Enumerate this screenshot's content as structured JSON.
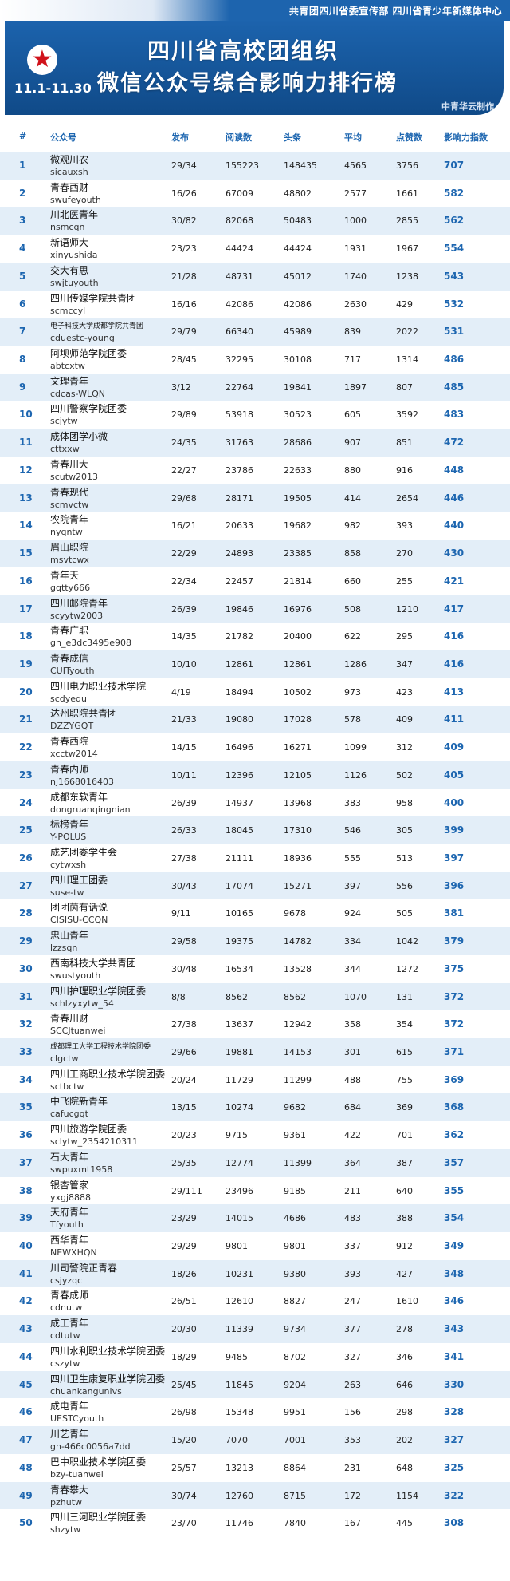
{
  "header": {
    "top_text": "共青团四川省委宣传部  四川省青少年新媒体中心",
    "title_line1": "四川省高校团组织",
    "title_line2": "微信公众号综合影响力排行榜",
    "date_range": "11.1-11.30",
    "maker": "中青华云制作",
    "star_icon": "★",
    "colors": {
      "banner": "#1c63ad",
      "accent": "#1d66b0",
      "row_alt": "#e3eef8",
      "star": "#d0121b"
    }
  },
  "columns": [
    "#",
    "公众号",
    "发布",
    "阅读数",
    "头条",
    "平均",
    "点赞数",
    "影响力指数"
  ],
  "rows": [
    {
      "rank": "1",
      "name": "微观川农",
      "id": "sicauxsh",
      "pub": "29/34",
      "read": "155223",
      "head": "148435",
      "avg": "4565",
      "like": "3756",
      "idx": "707"
    },
    {
      "rank": "2",
      "name": "青春西财",
      "id": "swufeyouth",
      "pub": "16/26",
      "read": "67009",
      "head": "48802",
      "avg": "2577",
      "like": "1661",
      "idx": "582"
    },
    {
      "rank": "3",
      "name": "川北医青年",
      "id": "nsmcqn",
      "pub": "30/82",
      "read": "82068",
      "head": "50483",
      "avg": "1000",
      "like": "2855",
      "idx": "562"
    },
    {
      "rank": "4",
      "name": "新语师大",
      "id": "xinyushida",
      "pub": "23/23",
      "read": "44424",
      "head": "44424",
      "avg": "1931",
      "like": "1967",
      "idx": "554"
    },
    {
      "rank": "5",
      "name": "交大有思",
      "id": "swjtuyouth",
      "pub": "21/28",
      "read": "48731",
      "head": "45012",
      "avg": "1740",
      "like": "1238",
      "idx": "543"
    },
    {
      "rank": "6",
      "name": "四川传媒学院共青团",
      "id": "scmccyl",
      "pub": "16/16",
      "read": "42086",
      "head": "42086",
      "avg": "2630",
      "like": "429",
      "idx": "532"
    },
    {
      "rank": "7",
      "name": "电子科技大学成都学院共青团",
      "id": "cduestc-young",
      "pub": "29/79",
      "read": "66340",
      "head": "45989",
      "avg": "839",
      "like": "2022",
      "idx": "531",
      "small": true
    },
    {
      "rank": "8",
      "name": "阿坝师范学院团委",
      "id": "abtcxtw",
      "pub": "28/45",
      "read": "32295",
      "head": "30108",
      "avg": "717",
      "like": "1314",
      "idx": "486"
    },
    {
      "rank": "9",
      "name": "文理青年",
      "id": "cdcas-WLQN",
      "pub": "3/12",
      "read": "22764",
      "head": "19841",
      "avg": "1897",
      "like": "807",
      "idx": "485"
    },
    {
      "rank": "10",
      "name": "四川警察学院团委",
      "id": "scjytw",
      "pub": "29/89",
      "read": "53918",
      "head": "30523",
      "avg": "605",
      "like": "3592",
      "idx": "483"
    },
    {
      "rank": "11",
      "name": "成体团学小微",
      "id": "cttxxw",
      "pub": "24/35",
      "read": "31763",
      "head": "28686",
      "avg": "907",
      "like": "851",
      "idx": "472"
    },
    {
      "rank": "12",
      "name": "青春川大",
      "id": "scutw2013",
      "pub": "22/27",
      "read": "23786",
      "head": "22633",
      "avg": "880",
      "like": "916",
      "idx": "448"
    },
    {
      "rank": "13",
      "name": "青春现代",
      "id": "scmvctw",
      "pub": "29/68",
      "read": "28171",
      "head": "19505",
      "avg": "414",
      "like": "2654",
      "idx": "446"
    },
    {
      "rank": "14",
      "name": "农院青年",
      "id": "nyqntw",
      "pub": "16/21",
      "read": "20633",
      "head": "19682",
      "avg": "982",
      "like": "393",
      "idx": "440"
    },
    {
      "rank": "15",
      "name": "眉山职院",
      "id": "msvtcwx",
      "pub": "22/29",
      "read": "24893",
      "head": "23385",
      "avg": "858",
      "like": "270",
      "idx": "430"
    },
    {
      "rank": "16",
      "name": "青年天一",
      "id": "gqtty666",
      "pub": "22/34",
      "read": "22457",
      "head": "21814",
      "avg": "660",
      "like": "255",
      "idx": "421"
    },
    {
      "rank": "17",
      "name": "四川邮院青年",
      "id": "scyytw2003",
      "pub": "26/39",
      "read": "19846",
      "head": "16976",
      "avg": "508",
      "like": "1210",
      "idx": "417"
    },
    {
      "rank": "18",
      "name": "青春广职",
      "id": "gh_e3dc3495e908",
      "pub": "14/35",
      "read": "21782",
      "head": "20400",
      "avg": "622",
      "like": "295",
      "idx": "416"
    },
    {
      "rank": "19",
      "name": "青春成信",
      "id": "CUITyouth",
      "pub": "10/10",
      "read": "12861",
      "head": "12861",
      "avg": "1286",
      "like": "347",
      "idx": "416"
    },
    {
      "rank": "20",
      "name": "四川电力职业技术学院",
      "id": "scdyedu",
      "pub": "4/19",
      "read": "18494",
      "head": "10502",
      "avg": "973",
      "like": "423",
      "idx": "413"
    },
    {
      "rank": "21",
      "name": "达州职院共青团",
      "id": "DZZYGQT",
      "pub": "21/33",
      "read": "19080",
      "head": "17028",
      "avg": "578",
      "like": "409",
      "idx": "411"
    },
    {
      "rank": "22",
      "name": "青春西院",
      "id": "xcctw2014",
      "pub": "14/15",
      "read": "16496",
      "head": "16271",
      "avg": "1099",
      "like": "312",
      "idx": "409"
    },
    {
      "rank": "23",
      "name": "青春内师",
      "id": "nj1668016403",
      "pub": "10/11",
      "read": "12396",
      "head": "12105",
      "avg": "1126",
      "like": "502",
      "idx": "405"
    },
    {
      "rank": "24",
      "name": "成都东软青年",
      "id": "dongruanqingnian",
      "pub": "26/39",
      "read": "14937",
      "head": "13968",
      "avg": "383",
      "like": "958",
      "idx": "400"
    },
    {
      "rank": "25",
      "name": "标榜青年",
      "id": "Y-POLUS",
      "pub": "26/33",
      "read": "18045",
      "head": "17310",
      "avg": "546",
      "like": "305",
      "idx": "399"
    },
    {
      "rank": "26",
      "name": "成艺团委学生会",
      "id": "cytwxsh",
      "pub": "27/38",
      "read": "21111",
      "head": "18936",
      "avg": "555",
      "like": "513",
      "idx": "397"
    },
    {
      "rank": "27",
      "name": "四川理工团委",
      "id": "suse-tw",
      "pub": "30/43",
      "read": "17074",
      "head": "15271",
      "avg": "397",
      "like": "556",
      "idx": "396"
    },
    {
      "rank": "28",
      "name": "团团茵有话说",
      "id": "CISISU-CCQN",
      "pub": "9/11",
      "read": "10165",
      "head": "9678",
      "avg": "924",
      "like": "505",
      "idx": "381"
    },
    {
      "rank": "29",
      "name": "忠山青年",
      "id": "lzzsqn",
      "pub": "29/58",
      "read": "19375",
      "head": "14782",
      "avg": "334",
      "like": "1042",
      "idx": "379"
    },
    {
      "rank": "30",
      "name": "西南科技大学共青团",
      "id": "swustyouth",
      "pub": "30/48",
      "read": "16534",
      "head": "13528",
      "avg": "344",
      "like": "1272",
      "idx": "375"
    },
    {
      "rank": "31",
      "name": "四川护理职业学院团委",
      "id": "schlzyxytw_54",
      "pub": "8/8",
      "read": "8562",
      "head": "8562",
      "avg": "1070",
      "like": "131",
      "idx": "372"
    },
    {
      "rank": "32",
      "name": "青春川财",
      "id": "SCCJtuanwei",
      "pub": "27/38",
      "read": "13637",
      "head": "12942",
      "avg": "358",
      "like": "354",
      "idx": "372"
    },
    {
      "rank": "33",
      "name": "成都理工大学工程技术学院团委",
      "id": "clgctw",
      "pub": "29/66",
      "read": "19881",
      "head": "14153",
      "avg": "301",
      "like": "615",
      "idx": "371",
      "small": true
    },
    {
      "rank": "34",
      "name": "四川工商职业技术学院团委",
      "id": "sctbctw",
      "pub": "20/24",
      "read": "11729",
      "head": "11299",
      "avg": "488",
      "like": "755",
      "idx": "369"
    },
    {
      "rank": "35",
      "name": "中飞院新青年",
      "id": "cafucgqt",
      "pub": "13/15",
      "read": "10274",
      "head": "9682",
      "avg": "684",
      "like": "369",
      "idx": "368"
    },
    {
      "rank": "36",
      "name": "四川旅游学院团委",
      "id": "sclytw_2354210311",
      "pub": "20/23",
      "read": "9715",
      "head": "9361",
      "avg": "422",
      "like": "701",
      "idx": "362"
    },
    {
      "rank": "37",
      "name": "石大青年",
      "id": "swpuxmt1958",
      "pub": "25/35",
      "read": "12774",
      "head": "11399",
      "avg": "364",
      "like": "387",
      "idx": "357"
    },
    {
      "rank": "38",
      "name": "银杏管家",
      "id": "yxgj8888",
      "pub": "29/111",
      "read": "23496",
      "head": "9185",
      "avg": "211",
      "like": "640",
      "idx": "355"
    },
    {
      "rank": "39",
      "name": "天府青年",
      "id": "Tfyouth",
      "pub": "23/29",
      "read": "14015",
      "head": "4686",
      "avg": "483",
      "like": "388",
      "idx": "354"
    },
    {
      "rank": "40",
      "name": "西华青年",
      "id": "NEWXHQN",
      "pub": "29/29",
      "read": "9801",
      "head": "9801",
      "avg": "337",
      "like": "912",
      "idx": "349"
    },
    {
      "rank": "41",
      "name": "川司警院正青春",
      "id": "csjyzqc",
      "pub": "18/26",
      "read": "10231",
      "head": "9380",
      "avg": "393",
      "like": "427",
      "idx": "348"
    },
    {
      "rank": "42",
      "name": "青春成师",
      "id": "cdnutw",
      "pub": "26/51",
      "read": "12610",
      "head": "8827",
      "avg": "247",
      "like": "1610",
      "idx": "346"
    },
    {
      "rank": "43",
      "name": "成工青年",
      "id": "cdtutw",
      "pub": "20/30",
      "read": "11339",
      "head": "9734",
      "avg": "377",
      "like": "278",
      "idx": "343"
    },
    {
      "rank": "44",
      "name": "四川水利职业技术学院团委",
      "id": "cszytw",
      "pub": "18/29",
      "read": "9485",
      "head": "8702",
      "avg": "327",
      "like": "346",
      "idx": "341"
    },
    {
      "rank": "45",
      "name": "四川卫生康复职业学院团委",
      "id": "chuankangunivs",
      "pub": "25/45",
      "read": "11845",
      "head": "9204",
      "avg": "263",
      "like": "646",
      "idx": "330"
    },
    {
      "rank": "46",
      "name": "成电青年",
      "id": "UESTCyouth",
      "pub": "26/98",
      "read": "15348",
      "head": "9951",
      "avg": "156",
      "like": "298",
      "idx": "328"
    },
    {
      "rank": "47",
      "name": "川艺青年",
      "id": "gh-466c0056a7dd",
      "pub": "15/20",
      "read": "7070",
      "head": "7001",
      "avg": "353",
      "like": "202",
      "idx": "327"
    },
    {
      "rank": "48",
      "name": "巴中职业技术学院团委",
      "id": "bzy-tuanwei",
      "pub": "25/57",
      "read": "13213",
      "head": "8864",
      "avg": "231",
      "like": "648",
      "idx": "325"
    },
    {
      "rank": "49",
      "name": "青春攀大",
      "id": "pzhutw",
      "pub": "30/74",
      "read": "12760",
      "head": "8715",
      "avg": "172",
      "like": "1154",
      "idx": "322"
    },
    {
      "rank": "50",
      "name": "四川三河职业学院团委",
      "id": "shzytw",
      "pub": "23/70",
      "read": "11746",
      "head": "7840",
      "avg": "167",
      "like": "445",
      "idx": "308"
    }
  ]
}
